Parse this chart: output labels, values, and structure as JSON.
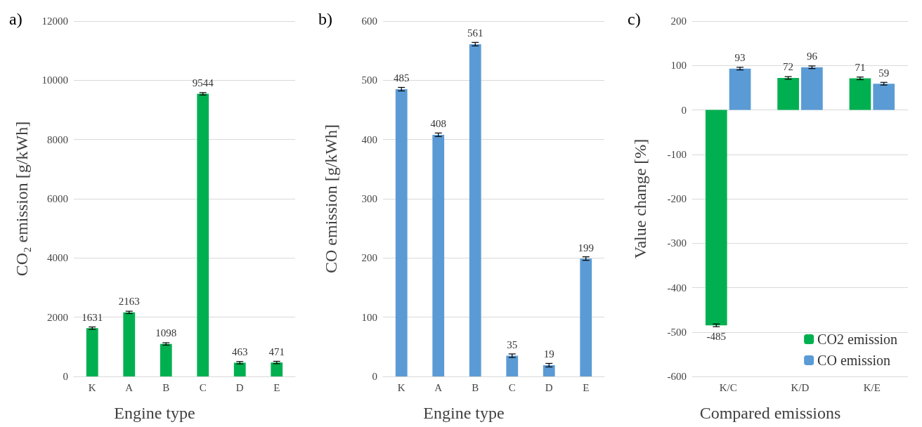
{
  "chart_data": [
    {
      "type": "bar",
      "title": "a)",
      "xlabel": "Engine type",
      "ylabel": "CO₂ emission [g/kWh]",
      "categories": [
        "K",
        "A",
        "B",
        "C",
        "D",
        "E"
      ],
      "series": [
        {
          "color": "#00b050",
          "values": [
            1631,
            2163,
            1098,
            9544,
            463,
            471
          ],
          "errors": [
            40,
            40,
            40,
            40,
            40,
            40
          ]
        }
      ],
      "ylim": [
        0,
        12000
      ],
      "yticks": [
        0,
        2000,
        4000,
        6000,
        8000,
        10000,
        12000
      ],
      "grid": "y",
      "data_labels": true,
      "legend": false
    },
    {
      "type": "bar",
      "title": "b)",
      "xlabel": "Engine type",
      "ylabel": "CO emission [g/kWh]",
      "categories": [
        "K",
        "A",
        "B",
        "C",
        "D",
        "E"
      ],
      "series": [
        {
          "color": "#5b9bd5",
          "values": [
            485,
            408,
            561,
            35,
            19,
            199
          ],
          "errors": [
            3,
            3,
            3,
            3,
            3,
            3
          ]
        }
      ],
      "ylim": [
        0,
        600
      ],
      "yticks": [
        0,
        100,
        200,
        300,
        400,
        500,
        600
      ],
      "grid": "y",
      "data_labels": true,
      "legend": false
    },
    {
      "type": "bar",
      "title": "c)",
      "xlabel": "Compared emissions",
      "ylabel": "Value change [%]",
      "categories": [
        "K/C",
        "K/D",
        "K/E"
      ],
      "series": [
        {
          "name": "CO2 emission",
          "color": "#00b050",
          "values": [
            -485,
            72,
            71
          ],
          "errors": [
            3,
            3,
            3
          ]
        },
        {
          "name": "CO emission",
          "color": "#5b9bd5",
          "values": [
            93,
            96,
            59
          ],
          "errors": [
            3,
            3,
            3
          ]
        }
      ],
      "ylim": [
        -600,
        200
      ],
      "yticks": [
        -600,
        -500,
        -400,
        -300,
        -200,
        -100,
        0,
        100,
        200
      ],
      "grid": "y",
      "data_labels": true,
      "legend": "bottom right"
    }
  ]
}
